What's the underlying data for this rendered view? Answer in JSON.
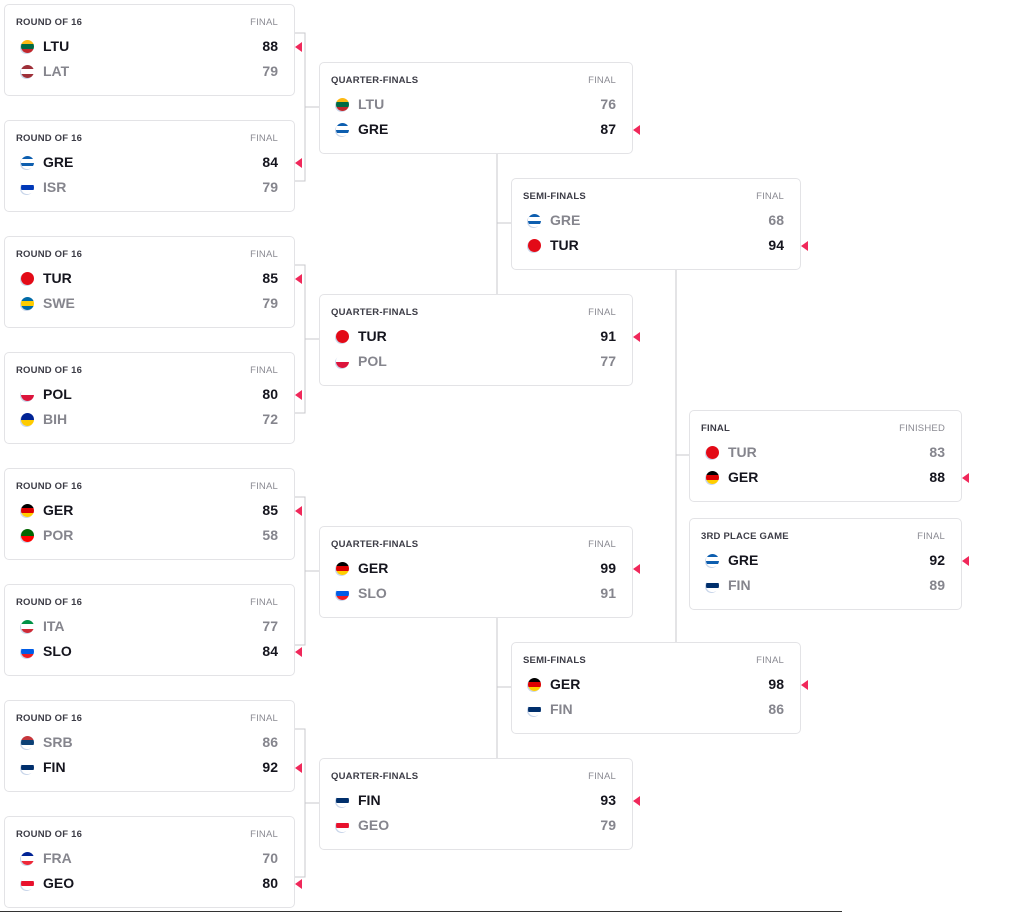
{
  "flags": {
    "LTU": [
      "#fdb913",
      "#006a44",
      "#c1272d"
    ],
    "LAT": [
      "#9e3039",
      "#ffffff",
      "#9e3039"
    ],
    "GRE": [
      "#0d5eaf",
      "#ffffff",
      "#0d5eaf",
      "#ffffff"
    ],
    "ISR": [
      "#ffffff",
      "#0038b8",
      "#ffffff"
    ],
    "TUR": [
      "#e30a17"
    ],
    "SWE": [
      "#006aa7",
      "#fecc00",
      "#006aa7"
    ],
    "POL": [
      "#ffffff",
      "#dc143c"
    ],
    "BIH": [
      "#002395",
      "#fecb00"
    ],
    "GER": [
      "#000000",
      "#dd0000",
      "#ffce00"
    ],
    "POR": [
      "#006600",
      "#ff0000"
    ],
    "ITA": [
      "#009246",
      "#ffffff",
      "#ce2b37"
    ],
    "SLO": [
      "#ffffff",
      "#005ce6",
      "#ed1c24"
    ],
    "SRB": [
      "#c6363c",
      "#0c4076",
      "#ffffff"
    ],
    "FIN": [
      "#ffffff",
      "#002f6c",
      "#ffffff"
    ],
    "FRA": [
      "#002395",
      "#ffffff",
      "#ed2939"
    ],
    "GEO": [
      "#ffffff",
      "#e8112d",
      "#ffffff"
    ]
  },
  "accent": "#f0285a",
  "matches": [
    {
      "round": "ROUND OF 16",
      "status": "FINAL",
      "teams": [
        {
          "code": "LTU",
          "score": "88",
          "winner": true
        },
        {
          "code": "LAT",
          "score": "79",
          "winner": false
        }
      ]
    },
    {
      "round": "ROUND OF 16",
      "status": "FINAL",
      "teams": [
        {
          "code": "GRE",
          "score": "84",
          "winner": true
        },
        {
          "code": "ISR",
          "score": "79",
          "winner": false
        }
      ]
    },
    {
      "round": "ROUND OF 16",
      "status": "FINAL",
      "teams": [
        {
          "code": "TUR",
          "score": "85",
          "winner": true
        },
        {
          "code": "SWE",
          "score": "79",
          "winner": false
        }
      ]
    },
    {
      "round": "ROUND OF 16",
      "status": "FINAL",
      "teams": [
        {
          "code": "POL",
          "score": "80",
          "winner": true
        },
        {
          "code": "BIH",
          "score": "72",
          "winner": false
        }
      ]
    },
    {
      "round": "ROUND OF 16",
      "status": "FINAL",
      "teams": [
        {
          "code": "GER",
          "score": "85",
          "winner": true
        },
        {
          "code": "POR",
          "score": "58",
          "winner": false
        }
      ]
    },
    {
      "round": "ROUND OF 16",
      "status": "FINAL",
      "teams": [
        {
          "code": "ITA",
          "score": "77",
          "winner": false
        },
        {
          "code": "SLO",
          "score": "84",
          "winner": true
        }
      ]
    },
    {
      "round": "ROUND OF 16",
      "status": "FINAL",
      "teams": [
        {
          "code": "SRB",
          "score": "86",
          "winner": false
        },
        {
          "code": "FIN",
          "score": "92",
          "winner": true
        }
      ]
    },
    {
      "round": "ROUND OF 16",
      "status": "FINAL",
      "teams": [
        {
          "code": "FRA",
          "score": "70",
          "winner": false
        },
        {
          "code": "GEO",
          "score": "80",
          "winner": true
        }
      ]
    },
    {
      "round": "QUARTER-FINALS",
      "status": "FINAL",
      "teams": [
        {
          "code": "LTU",
          "score": "76",
          "winner": false
        },
        {
          "code": "GRE",
          "score": "87",
          "winner": true
        }
      ]
    },
    {
      "round": "QUARTER-FINALS",
      "status": "FINAL",
      "teams": [
        {
          "code": "TUR",
          "score": "91",
          "winner": true
        },
        {
          "code": "POL",
          "score": "77",
          "winner": false
        }
      ]
    },
    {
      "round": "QUARTER-FINALS",
      "status": "FINAL",
      "teams": [
        {
          "code": "GER",
          "score": "99",
          "winner": true
        },
        {
          "code": "SLO",
          "score": "91",
          "winner": false
        }
      ]
    },
    {
      "round": "QUARTER-FINALS",
      "status": "FINAL",
      "teams": [
        {
          "code": "FIN",
          "score": "93",
          "winner": true
        },
        {
          "code": "GEO",
          "score": "79",
          "winner": false
        }
      ]
    },
    {
      "round": "SEMI-FINALS",
      "status": "FINAL",
      "teams": [
        {
          "code": "GRE",
          "score": "68",
          "winner": false
        },
        {
          "code": "TUR",
          "score": "94",
          "winner": true
        }
      ]
    },
    {
      "round": "SEMI-FINALS",
      "status": "FINAL",
      "teams": [
        {
          "code": "GER",
          "score": "98",
          "winner": true
        },
        {
          "code": "FIN",
          "score": "86",
          "winner": false
        }
      ]
    },
    {
      "round": "FINAL",
      "status": "FINISHED",
      "teams": [
        {
          "code": "TUR",
          "score": "83",
          "winner": false
        },
        {
          "code": "GER",
          "score": "88",
          "winner": true
        }
      ]
    },
    {
      "round": "3RD PLACE GAME",
      "status": "FINAL",
      "teams": [
        {
          "code": "GRE",
          "score": "92",
          "winner": true
        },
        {
          "code": "FIN",
          "score": "89",
          "winner": false
        }
      ]
    }
  ]
}
